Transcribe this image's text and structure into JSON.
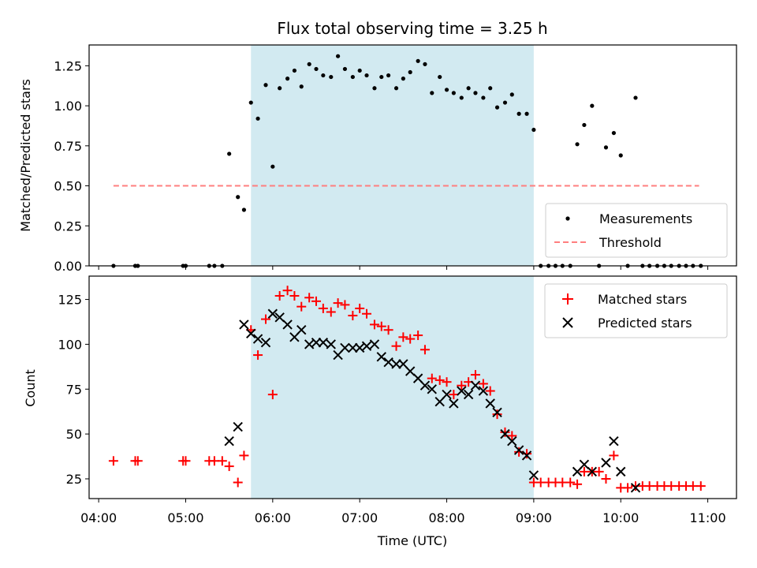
{
  "chart_data": {
    "title": "Flux total observing time = 3.25 h",
    "xlabel": "Time (UTC)",
    "x_ticks": [
      "04:00",
      "05:00",
      "06:00",
      "07:00",
      "08:00",
      "09:00",
      "10:00",
      "11:00"
    ],
    "x_range_hours": [
      3.89,
      11.33
    ],
    "shaded_span_hours": [
      5.75,
      9.0
    ],
    "colors": {
      "shade": "#add8e6",
      "measurements": "#000000",
      "threshold": "#ff7f7f",
      "matched": "#ff0000",
      "predicted": "#000000"
    },
    "panels": [
      {
        "type": "scatter",
        "ylabel": "Matched/Predicted stars",
        "ylim": [
          0,
          1.38
        ],
        "y_ticks": [
          "0.00",
          "0.25",
          "0.50",
          "0.75",
          "1.00",
          "1.25"
        ],
        "legend": [
          "Measurements",
          "Threshold"
        ],
        "threshold": {
          "name": "Threshold",
          "value": 0.5,
          "x_range": [
            4.17,
            10.9
          ]
        },
        "measurements": [
          [
            4.17,
            0.0
          ],
          [
            4.42,
            0.0
          ],
          [
            4.45,
            0.0
          ],
          [
            4.97,
            0.0
          ],
          [
            5.0,
            0.0
          ],
          [
            5.27,
            0.0
          ],
          [
            5.33,
            0.0
          ],
          [
            5.42,
            0.0
          ],
          [
            5.5,
            0.7
          ],
          [
            5.6,
            0.43
          ],
          [
            5.67,
            0.35
          ],
          [
            5.75,
            1.02
          ],
          [
            5.83,
            0.92
          ],
          [
            5.92,
            1.13
          ],
          [
            6.0,
            0.62
          ],
          [
            6.08,
            1.11
          ],
          [
            6.17,
            1.17
          ],
          [
            6.25,
            1.22
          ],
          [
            6.33,
            1.12
          ],
          [
            6.42,
            1.26
          ],
          [
            6.5,
            1.23
          ],
          [
            6.58,
            1.19
          ],
          [
            6.67,
            1.18
          ],
          [
            6.75,
            1.31
          ],
          [
            6.83,
            1.23
          ],
          [
            6.92,
            1.18
          ],
          [
            7.0,
            1.22
          ],
          [
            7.08,
            1.19
          ],
          [
            7.17,
            1.11
          ],
          [
            7.25,
            1.18
          ],
          [
            7.33,
            1.19
          ],
          [
            7.42,
            1.11
          ],
          [
            7.5,
            1.17
          ],
          [
            7.58,
            1.21
          ],
          [
            7.67,
            1.28
          ],
          [
            7.75,
            1.26
          ],
          [
            7.83,
            1.08
          ],
          [
            7.92,
            1.18
          ],
          [
            8.0,
            1.1
          ],
          [
            8.08,
            1.08
          ],
          [
            8.17,
            1.05
          ],
          [
            8.25,
            1.11
          ],
          [
            8.33,
            1.08
          ],
          [
            8.42,
            1.05
          ],
          [
            8.5,
            1.11
          ],
          [
            8.58,
            0.99
          ],
          [
            8.67,
            1.02
          ],
          [
            8.75,
            1.07
          ],
          [
            8.83,
            0.95
          ],
          [
            8.92,
            0.95
          ],
          [
            9.0,
            0.85
          ],
          [
            9.08,
            0.0
          ],
          [
            9.17,
            0.0
          ],
          [
            9.25,
            0.0
          ],
          [
            9.33,
            0.0
          ],
          [
            9.42,
            0.0
          ],
          [
            9.5,
            0.76
          ],
          [
            9.58,
            0.88
          ],
          [
            9.67,
            1.0
          ],
          [
            9.75,
            0.0
          ],
          [
            9.83,
            0.74
          ],
          [
            9.92,
            0.83
          ],
          [
            10.0,
            0.69
          ],
          [
            10.08,
            0.0
          ],
          [
            10.17,
            1.05
          ],
          [
            10.25,
            0.0
          ],
          [
            10.33,
            0.0
          ],
          [
            10.42,
            0.0
          ],
          [
            10.5,
            0.0
          ],
          [
            10.58,
            0.0
          ],
          [
            10.67,
            0.0
          ],
          [
            10.75,
            0.0
          ],
          [
            10.83,
            0.0
          ],
          [
            10.92,
            0.0
          ]
        ]
      },
      {
        "type": "scatter",
        "ylabel": "Count",
        "ylim": [
          14,
          138
        ],
        "y_ticks": [
          "25",
          "50",
          "75",
          "100",
          "125"
        ],
        "legend": [
          "Matched stars",
          "Predicted stars"
        ],
        "series": [
          {
            "name": "Matched stars",
            "marker": "plus",
            "points": [
              [
                4.17,
                35
              ],
              [
                4.42,
                35
              ],
              [
                4.45,
                35
              ],
              [
                4.97,
                35
              ],
              [
                5.0,
                35
              ],
              [
                5.27,
                35
              ],
              [
                5.33,
                35
              ],
              [
                5.42,
                35
              ],
              [
                5.5,
                32
              ],
              [
                5.6,
                23
              ],
              [
                5.67,
                38
              ],
              [
                5.75,
                108
              ],
              [
                5.83,
                94
              ],
              [
                5.92,
                114
              ],
              [
                6.0,
                72
              ],
              [
                6.08,
                127
              ],
              [
                6.17,
                130
              ],
              [
                6.25,
                127
              ],
              [
                6.33,
                121
              ],
              [
                6.42,
                126
              ],
              [
                6.5,
                124
              ],
              [
                6.58,
                120
              ],
              [
                6.67,
                118
              ],
              [
                6.75,
                123
              ],
              [
                6.83,
                122
              ],
              [
                6.92,
                116
              ],
              [
                7.0,
                120
              ],
              [
                7.08,
                117
              ],
              [
                7.17,
                111
              ],
              [
                7.25,
                110
              ],
              [
                7.33,
                108
              ],
              [
                7.42,
                99
              ],
              [
                7.5,
                104
              ],
              [
                7.58,
                103
              ],
              [
                7.67,
                105
              ],
              [
                7.75,
                97
              ],
              [
                7.83,
                81
              ],
              [
                7.92,
                80
              ],
              [
                8.0,
                79
              ],
              [
                8.08,
                72
              ],
              [
                8.17,
                77
              ],
              [
                8.25,
                79
              ],
              [
                8.33,
                83
              ],
              [
                8.42,
                78
              ],
              [
                8.5,
                74
              ],
              [
                8.58,
                61
              ],
              [
                8.67,
                51
              ],
              [
                8.75,
                49
              ],
              [
                8.83,
                40
              ],
              [
                8.92,
                39
              ],
              [
                9.0,
                23
              ],
              [
                9.08,
                23
              ],
              [
                9.17,
                23
              ],
              [
                9.25,
                23
              ],
              [
                9.33,
                23
              ],
              [
                9.42,
                23
              ],
              [
                9.5,
                22
              ],
              [
                9.58,
                29
              ],
              [
                9.67,
                29
              ],
              [
                9.75,
                29
              ],
              [
                9.83,
                25
              ],
              [
                9.92,
                38
              ],
              [
                10.0,
                20
              ],
              [
                10.08,
                20
              ],
              [
                10.17,
                21
              ],
              [
                10.25,
                21
              ],
              [
                10.33,
                21
              ],
              [
                10.42,
                21
              ],
              [
                10.5,
                21
              ],
              [
                10.58,
                21
              ],
              [
                10.67,
                21
              ],
              [
                10.75,
                21
              ],
              [
                10.83,
                21
              ],
              [
                10.92,
                21
              ]
            ]
          },
          {
            "name": "Predicted stars",
            "marker": "x",
            "points": [
              [
                5.5,
                46
              ],
              [
                5.6,
                54
              ],
              [
                5.67,
                111
              ],
              [
                5.75,
                106
              ],
              [
                5.83,
                103
              ],
              [
                5.92,
                101
              ],
              [
                6.0,
                117
              ],
              [
                6.08,
                115
              ],
              [
                6.17,
                111
              ],
              [
                6.25,
                104
              ],
              [
                6.33,
                108
              ],
              [
                6.42,
                100
              ],
              [
                6.5,
                101
              ],
              [
                6.58,
                101
              ],
              [
                6.67,
                100
              ],
              [
                6.75,
                94
              ],
              [
                6.83,
                98
              ],
              [
                6.92,
                98
              ],
              [
                7.0,
                98
              ],
              [
                7.08,
                99
              ],
              [
                7.17,
                100
              ],
              [
                7.25,
                93
              ],
              [
                7.33,
                90
              ],
              [
                7.42,
                89
              ],
              [
                7.5,
                89
              ],
              [
                7.58,
                85
              ],
              [
                7.67,
                81
              ],
              [
                7.75,
                77
              ],
              [
                7.83,
                75
              ],
              [
                7.92,
                68
              ],
              [
                8.0,
                72
              ],
              [
                8.08,
                67
              ],
              [
                8.17,
                74
              ],
              [
                8.25,
                72
              ],
              [
                8.33,
                77
              ],
              [
                8.42,
                74
              ],
              [
                8.5,
                67
              ],
              [
                8.58,
                62
              ],
              [
                8.67,
                50
              ],
              [
                8.75,
                46
              ],
              [
                8.83,
                41
              ],
              [
                8.92,
                38
              ],
              [
                9.0,
                27
              ],
              [
                9.5,
                29
              ],
              [
                9.58,
                33
              ],
              [
                9.67,
                29
              ],
              [
                9.83,
                34
              ],
              [
                9.92,
                46
              ],
              [
                10.0,
                29
              ],
              [
                10.17,
                20
              ]
            ]
          }
        ]
      }
    ]
  }
}
